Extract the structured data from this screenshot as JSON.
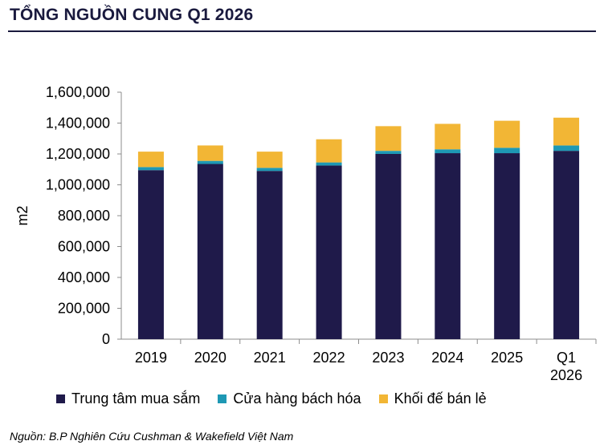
{
  "title": "TỔNG NGUỒN CUNG Q1 2026",
  "source": "Nguồn: B.P Nghiên Cứu Cushman & Wakefield Việt Nam",
  "chart_data": {
    "type": "bar",
    "stacked": true,
    "categories": [
      [
        "2019"
      ],
      [
        "2020"
      ],
      [
        "2021"
      ],
      [
        "2022"
      ],
      [
        "2023"
      ],
      [
        "2024"
      ],
      [
        "2025"
      ],
      [
        "Q1",
        "2026"
      ]
    ],
    "ylabel": "m2",
    "ylim": [
      0,
      1600000
    ],
    "yticks": [
      0,
      200000,
      400000,
      600000,
      800000,
      1000000,
      1200000,
      1400000,
      1600000
    ],
    "ytick_labels": [
      "0",
      "200,000",
      "400,000",
      "600,000",
      "800,000",
      "1,000,000",
      "1,200,000",
      "1,400,000",
      "1,600,000"
    ],
    "grid": false,
    "legend_position": "bottom",
    "series": [
      {
        "name": "Trung tâm mua sắm",
        "color": "#1f1a4a",
        "values": [
          1095000,
          1135000,
          1090000,
          1125000,
          1200000,
          1205000,
          1205000,
          1220000
        ]
      },
      {
        "name": "Cửa hàng bách hóa",
        "color": "#1e98b4",
        "values": [
          20000,
          20000,
          20000,
          20000,
          20000,
          25000,
          35000,
          35000
        ]
      },
      {
        "name": "Khối đế bán lẻ",
        "color": "#f2b635",
        "values": [
          100000,
          100000,
          105000,
          150000,
          160000,
          165000,
          175000,
          180000
        ]
      }
    ]
  }
}
